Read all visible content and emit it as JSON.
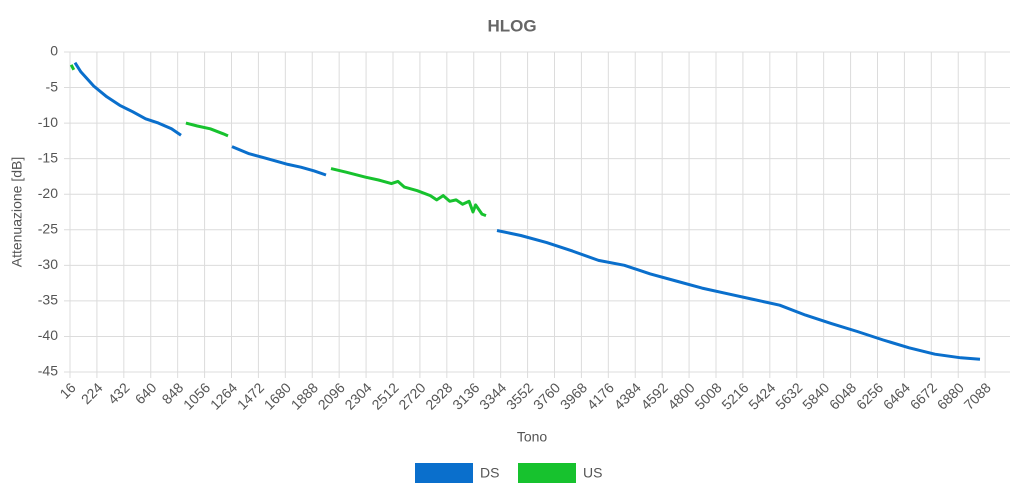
{
  "chart_data": {
    "type": "line",
    "title": "HLOG",
    "x_label": "Tono",
    "y_label": "Attenuazione [dB]",
    "x": [
      25,
      45,
      55,
      100,
      200,
      300,
      400,
      500,
      600,
      700,
      800,
      874,
      912,
      1000,
      1100,
      1200,
      1237,
      1268,
      1400,
      1500,
      1600,
      1700,
      1800,
      1900,
      1994,
      2033,
      2150,
      2300,
      2400,
      2500,
      2550,
      2600,
      2700,
      2800,
      2850,
      2900,
      2950,
      3000,
      3050,
      3100,
      3130,
      3150,
      3200,
      3231,
      3316,
      3500,
      3700,
      3900,
      4100,
      4300,
      4500,
      4700,
      4900,
      5100,
      5300,
      5500,
      5700,
      5900,
      6100,
      6300,
      6500,
      6700,
      6900,
      7048
    ],
    "series": [
      {
        "name": "DS",
        "color": "#0a6fcc",
        "values": [
          null,
          null,
          -1.5,
          -2.8,
          -4.8,
          -6.3,
          -7.5,
          -8.4,
          -9.4,
          -10.0,
          -10.8,
          -11.7,
          null,
          null,
          null,
          null,
          null,
          -13.3,
          -14.3,
          -14.8,
          -15.3,
          -15.8,
          -16.2,
          -16.7,
          -17.3,
          null,
          null,
          null,
          null,
          null,
          null,
          null,
          null,
          null,
          null,
          null,
          null,
          null,
          null,
          null,
          null,
          null,
          null,
          null,
          -25.1,
          -25.8,
          -26.8,
          -28.0,
          -29.3,
          -30.0,
          -31.2,
          -32.2,
          -33.2,
          -34.0,
          -34.8,
          -35.6,
          -37.0,
          -38.2,
          -39.3,
          -40.5,
          -41.6,
          -42.5,
          -43.0,
          -43.2
        ]
      },
      {
        "name": "US",
        "color": "#17c22e",
        "values": [
          -1.8,
          -2.5,
          null,
          null,
          null,
          null,
          null,
          null,
          null,
          null,
          null,
          null,
          -10.0,
          -10.4,
          -10.8,
          -11.5,
          -11.8,
          null,
          null,
          null,
          null,
          null,
          null,
          null,
          null,
          -16.4,
          -16.9,
          -17.6,
          -18.0,
          -18.5,
          -18.2,
          -19.0,
          -19.5,
          -20.2,
          -20.8,
          -20.2,
          -21.0,
          -20.8,
          -21.4,
          -21.0,
          -22.5,
          -21.5,
          -22.8,
          -23.0,
          null,
          null,
          null,
          null,
          null,
          null,
          null,
          null,
          null,
          null,
          null,
          null,
          null,
          null,
          null,
          null,
          null,
          null,
          null,
          null
        ]
      }
    ],
    "xlim": [
      16,
      7280
    ],
    "xticks": [
      16,
      224,
      432,
      640,
      848,
      1056,
      1264,
      1472,
      1680,
      1888,
      2096,
      2304,
      2512,
      2720,
      2928,
      3136,
      3344,
      3552,
      3760,
      3968,
      4176,
      4384,
      4592,
      4800,
      5008,
      5216,
      5424,
      5632,
      5840,
      6048,
      6256,
      6464,
      6672,
      6880,
      7088
    ],
    "ylim": [
      -45,
      0
    ],
    "yticks": [
      0,
      -5,
      -10,
      -15,
      -20,
      -25,
      -30,
      -35,
      -40,
      -45
    ],
    "grid": true,
    "legend": "bottom"
  }
}
